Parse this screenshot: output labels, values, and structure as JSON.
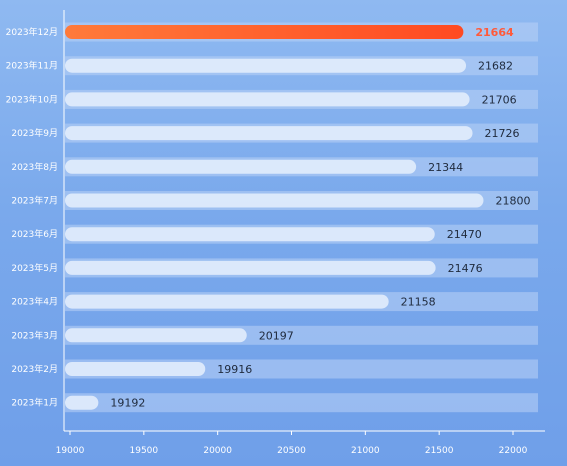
{
  "chart_data": {
    "type": "bar",
    "orientation": "horizontal",
    "categories": [
      "2023年12月",
      "2023年11月",
      "2023年10月",
      "2023年9月",
      "2023年8月",
      "2023年7月",
      "2023年6月",
      "2023年5月",
      "2023年4月",
      "2023年3月",
      "2023年2月",
      "2023年1月"
    ],
    "values": [
      21664,
      21682,
      21706,
      21726,
      21344,
      21800,
      21470,
      21476,
      21158,
      20197,
      19916,
      19192
    ],
    "highlight_index": 0,
    "xlim": [
      19000,
      22000
    ],
    "x_ticks": [
      "19000",
      "19500",
      "20000",
      "20500",
      "21000",
      "21500",
      "22000"
    ],
    "grid": false,
    "colors": {
      "highlight": "#ff5a2a",
      "bar": "#e4eefc",
      "track": "#b9d1f6",
      "highlight_label": "#ff5a3a",
      "value_label": "#1f2a3c",
      "axis_text": "#ffffff"
    }
  }
}
